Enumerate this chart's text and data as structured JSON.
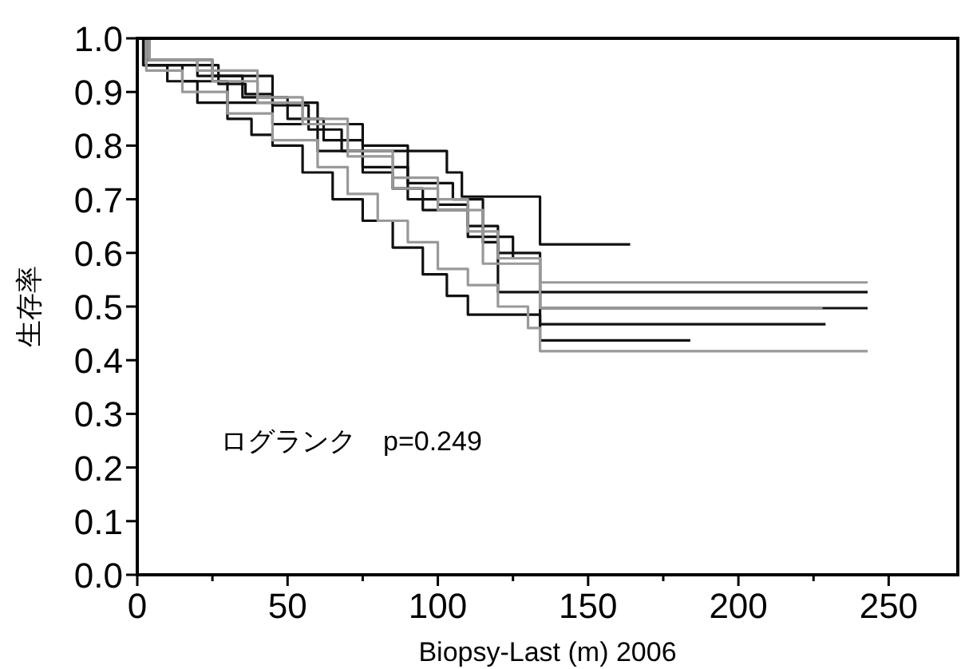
{
  "chart_data": {
    "type": "step",
    "xlabel": "Biopsy-Last (m) 2006",
    "ylabel": "生存率",
    "annotations": [
      "ログランク　p=0.249"
    ],
    "xlim": [
      0,
      273
    ],
    "xticks": [
      0,
      {
        "value": 25,
        "label": null
      },
      50,
      {
        "value": 75,
        "label": null
      },
      100,
      {
        "value": 125,
        "label": null
      },
      150,
      {
        "value": 175,
        "label": null
      },
      200,
      {
        "value": 225,
        "label": null
      },
      250
    ],
    "ylim": [
      0,
      1
    ],
    "yticks": [
      {
        "value": 0,
        "label": "0.0"
      },
      {
        "value": 0.1,
        "label": "0.1"
      },
      {
        "value": 0.2,
        "label": "0.2"
      },
      {
        "value": 0.3,
        "label": "0.3"
      },
      {
        "value": 0.4,
        "label": "0.4"
      },
      {
        "value": 0.5,
        "label": "0.5"
      },
      {
        "value": 0.6,
        "label": "0.6"
      },
      {
        "value": 0.7,
        "label": "0.7"
      },
      {
        "value": 0.8,
        "label": "0.8"
      },
      {
        "value": 0.9,
        "label": "0.9"
      },
      {
        "value": 1,
        "label": "1.0"
      }
    ],
    "grid": false,
    "series": [
      {
        "color": "#999999",
        "x": [
          0,
          3,
          15,
          30,
          45,
          60,
          70,
          80,
          90,
          100,
          110,
          120,
          130,
          134,
          243
        ],
        "values": [
          1,
          0.94,
          0.9,
          0.86,
          0.81,
          0.76,
          0.71,
          0.66,
          0.62,
          0.57,
          0.54,
          0.5,
          0.46,
          0.417,
          0.417
        ]
      },
      {
        "color": "#999999",
        "x": [
          0,
          4,
          25,
          40,
          55,
          70,
          85,
          100,
          115,
          134,
          228
        ],
        "values": [
          1,
          0.96,
          0.92,
          0.88,
          0.84,
          0.78,
          0.72,
          0.68,
          0.58,
          0.497,
          0.497
        ]
      },
      {
        "color": "#999999",
        "x": [
          0,
          4,
          20,
          40,
          55,
          70,
          85,
          100,
          110,
          120,
          134,
          243
        ],
        "values": [
          1,
          0.96,
          0.94,
          0.89,
          0.85,
          0.79,
          0.74,
          0.7,
          0.64,
          0.59,
          0.545,
          0.545
        ]
      },
      {
        "color": "#111111",
        "x": [
          0,
          2,
          10,
          20,
          30,
          38,
          45,
          55,
          65,
          75,
          85,
          95,
          103,
          110,
          134,
          184
        ],
        "values": [
          1,
          0.95,
          0.92,
          0.88,
          0.85,
          0.82,
          0.8,
          0.75,
          0.7,
          0.66,
          0.61,
          0.56,
          0.52,
          0.485,
          0.437,
          0.437
        ]
      },
      {
        "color": "#111111",
        "x": [
          0,
          3,
          15,
          30,
          45,
          60,
          75,
          85,
          95,
          110,
          125,
          134,
          229
        ],
        "values": [
          1,
          0.95,
          0.92,
          0.88,
          0.84,
          0.79,
          0.75,
          0.72,
          0.68,
          0.63,
          0.59,
          0.467,
          0.467
        ]
      },
      {
        "color": "#111111",
        "x": [
          0,
          3,
          20,
          35,
          50,
          62,
          75,
          90,
          100,
          110,
          120,
          134,
          243
        ],
        "values": [
          1,
          0.96,
          0.93,
          0.89,
          0.85,
          0.81,
          0.76,
          0.7,
          0.69,
          0.65,
          0.6,
          0.497,
          0.497
        ]
      },
      {
        "color": "#111111",
        "x": [
          0,
          4,
          25,
          45,
          60,
          75,
          90,
          105,
          115,
          120,
          243
        ],
        "values": [
          1,
          0.96,
          0.93,
          0.88,
          0.84,
          0.8,
          0.73,
          0.7,
          0.62,
          0.527,
          0.527
        ]
      },
      {
        "color": "#111111",
        "x": [
          0,
          2,
          27,
          36,
          45,
          57,
          68,
          103,
          108,
          134,
          164
        ],
        "values": [
          1,
          0.95,
          0.915,
          0.896,
          0.875,
          0.83,
          0.79,
          0.75,
          0.705,
          0.616,
          0.616
        ]
      }
    ]
  }
}
